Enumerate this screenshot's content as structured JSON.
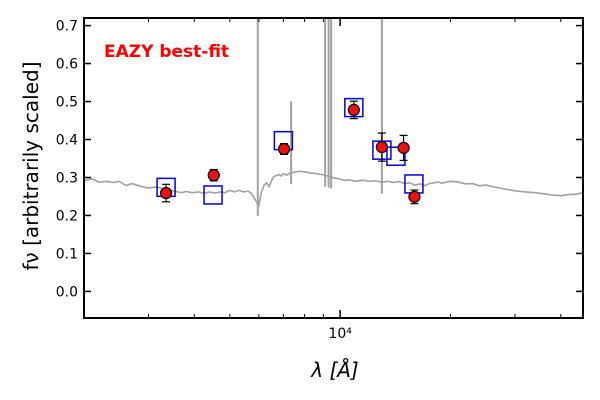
{
  "chart_data": {
    "type": "scatter",
    "title": "",
    "xlabel": "λ [Å]",
    "ylabel": "fν [arbitrarily scaled]",
    "xscale": "log",
    "xlim": [
      2000,
      46000
    ],
    "ylim": [
      -0.07,
      0.72
    ],
    "x_ticks": [
      {
        "value": 10000,
        "label": "10⁴"
      }
    ],
    "y_ticks": [
      {
        "value": 0.0,
        "label": "0.0"
      },
      {
        "value": 0.1,
        "label": "0.1"
      },
      {
        "value": 0.2,
        "label": "0.2"
      },
      {
        "value": 0.3,
        "label": "0.3"
      },
      {
        "value": 0.4,
        "label": "0.4"
      },
      {
        "value": 0.5,
        "label": "0.5"
      },
      {
        "value": 0.6,
        "label": "0.6"
      },
      {
        "value": 0.7,
        "label": "0.7"
      }
    ],
    "grid": false,
    "annotation": {
      "text": "EAZY best-fit",
      "color": "#ff0000"
    },
    "colors": {
      "template": "#a0a0a0",
      "model_marker": "#0000dd",
      "observed_marker": "#ee1111",
      "error_bar": "#000000",
      "axes": "#000000"
    },
    "series": [
      {
        "kind": "template-line",
        "points": [
          [
            2000,
            0.292
          ],
          [
            2100,
            0.296
          ],
          [
            2200,
            0.288
          ],
          [
            2300,
            0.29
          ],
          [
            2400,
            0.287
          ],
          [
            2500,
            0.29
          ],
          [
            2600,
            0.279
          ],
          [
            2700,
            0.284
          ],
          [
            2850,
            0.277
          ],
          [
            3000,
            0.272
          ],
          [
            3150,
            0.275
          ],
          [
            3300,
            0.27
          ],
          [
            3450,
            0.266
          ],
          [
            3600,
            0.262
          ],
          [
            3700,
            0.26
          ],
          [
            3800,
            0.263
          ],
          [
            3950,
            0.26
          ],
          [
            4100,
            0.262
          ],
          [
            4250,
            0.258
          ],
          [
            4400,
            0.262
          ],
          [
            4550,
            0.259
          ],
          [
            4700,
            0.262
          ],
          [
            4850,
            0.26
          ],
          [
            5000,
            0.266
          ],
          [
            5150,
            0.262
          ],
          [
            5300,
            0.266
          ],
          [
            5450,
            0.262
          ],
          [
            5600,
            0.264
          ],
          [
            5700,
            0.26
          ],
          [
            5800,
            0.25
          ],
          [
            5900,
            0.237
          ],
          [
            5950,
            0.23
          ],
          [
            6000,
            0.226
          ],
          [
            6040,
            0.24
          ],
          [
            6100,
            0.262
          ],
          [
            6200,
            0.28
          ],
          [
            6300,
            0.286
          ],
          [
            6400,
            0.276
          ],
          [
            6500,
            0.292
          ],
          [
            6600,
            0.303
          ],
          [
            6700,
            0.305
          ],
          [
            6800,
            0.308
          ],
          [
            6900,
            0.304
          ],
          [
            7000,
            0.31
          ],
          [
            7150,
            0.306
          ],
          [
            7300,
            0.312
          ],
          [
            7500,
            0.314
          ],
          [
            7700,
            0.316
          ],
          [
            8000,
            0.315
          ],
          [
            8300,
            0.312
          ],
          [
            8600,
            0.31
          ],
          [
            9000,
            0.307
          ],
          [
            9400,
            0.302
          ],
          [
            9700,
            0.298
          ],
          [
            10000,
            0.296
          ],
          [
            10300,
            0.292
          ],
          [
            10600,
            0.294
          ],
          [
            11000,
            0.29
          ],
          [
            11500,
            0.293
          ],
          [
            12000,
            0.29
          ],
          [
            12500,
            0.291
          ],
          [
            13000,
            0.288
          ],
          [
            13500,
            0.29
          ],
          [
            14000,
            0.287
          ],
          [
            14500,
            0.289
          ],
          [
            15000,
            0.284
          ],
          [
            15500,
            0.286
          ],
          [
            16000,
            0.28
          ],
          [
            16500,
            0.283
          ],
          [
            17000,
            0.278
          ],
          [
            17500,
            0.284
          ],
          [
            18000,
            0.286
          ],
          [
            18500,
            0.288
          ],
          [
            19000,
            0.285
          ],
          [
            19500,
            0.288
          ],
          [
            20000,
            0.29
          ],
          [
            21000,
            0.288
          ],
          [
            22000,
            0.283
          ],
          [
            23000,
            0.284
          ],
          [
            24000,
            0.278
          ],
          [
            25000,
            0.28
          ],
          [
            26000,
            0.276
          ],
          [
            28000,
            0.27
          ],
          [
            30000,
            0.265
          ],
          [
            32000,
            0.262
          ],
          [
            34000,
            0.26
          ],
          [
            36000,
            0.257
          ],
          [
            38000,
            0.254
          ],
          [
            40000,
            0.252
          ],
          [
            42000,
            0.255
          ],
          [
            44000,
            0.256
          ],
          [
            46000,
            0.26
          ]
        ],
        "emission_lines": [
          {
            "x": 5960,
            "y_top": 0.75
          },
          {
            "x": 7350,
            "y_top": 0.5
          },
          {
            "x": 9100,
            "y_top": 0.75
          },
          {
            "x": 9300,
            "y_top": 0.75
          },
          {
            "x": 9450,
            "y_top": 0.75
          },
          {
            "x": 13000,
            "y_top": 0.75
          }
        ]
      },
      {
        "kind": "model-squares",
        "points": [
          [
            3350,
            0.274
          ],
          [
            4500,
            0.254
          ],
          [
            7000,
            0.397
          ],
          [
            10900,
            0.484
          ],
          [
            13000,
            0.372
          ],
          [
            14200,
            0.356
          ],
          [
            15900,
            0.283
          ]
        ]
      },
      {
        "kind": "observed-points",
        "points": [
          {
            "x": 3350,
            "y": 0.259,
            "err": 0.023
          },
          {
            "x": 4520,
            "y": 0.306,
            "err": 0.015
          },
          {
            "x": 7030,
            "y": 0.375,
            "err": 0.014
          },
          {
            "x": 10900,
            "y": 0.478,
            "err": 0.023
          },
          {
            "x": 13000,
            "y": 0.38,
            "err": 0.037
          },
          {
            "x": 14900,
            "y": 0.378,
            "err": 0.033
          },
          {
            "x": 15950,
            "y": 0.249,
            "err": 0.018
          }
        ]
      }
    ]
  }
}
